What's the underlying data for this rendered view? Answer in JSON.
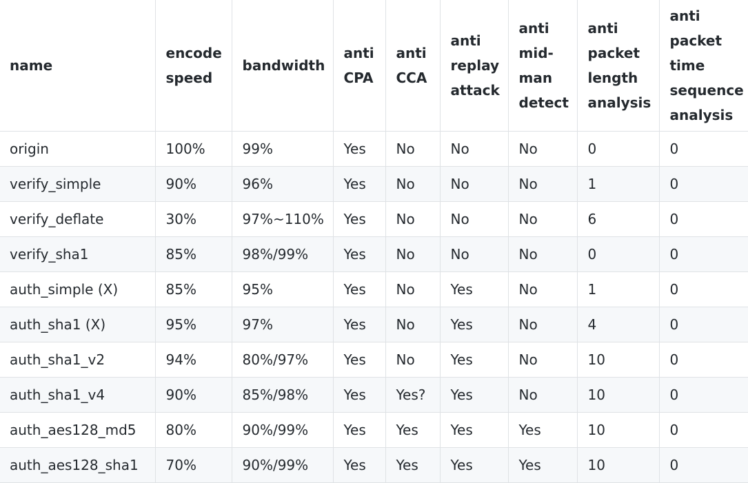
{
  "table": {
    "columns": [
      {
        "key": "name",
        "lines": [
          "name"
        ]
      },
      {
        "key": "encode_speed",
        "lines": [
          "encode",
          "speed"
        ]
      },
      {
        "key": "bandwidth",
        "lines": [
          "bandwidth"
        ]
      },
      {
        "key": "anti_cpa",
        "lines": [
          "anti",
          "CPA"
        ]
      },
      {
        "key": "anti_cca",
        "lines": [
          "anti",
          "CCA"
        ]
      },
      {
        "key": "anti_replay_attack",
        "lines": [
          "anti",
          "replay",
          "attack"
        ]
      },
      {
        "key": "anti_mid_man_detect",
        "lines": [
          "anti",
          "mid-",
          "man",
          "detect"
        ]
      },
      {
        "key": "anti_packet_length_analysis",
        "lines": [
          "anti",
          "packet",
          "length",
          "analysis"
        ]
      },
      {
        "key": "anti_packet_time_sequence_analysis",
        "lines": [
          "anti",
          "packet",
          "time",
          "sequence",
          "analysis"
        ]
      }
    ],
    "rows": [
      [
        "origin",
        "100%",
        "99%",
        "Yes",
        "No",
        "No",
        "No",
        "0",
        "0"
      ],
      [
        "verify_simple",
        "90%",
        "96%",
        "Yes",
        "No",
        "No",
        "No",
        "1",
        "0"
      ],
      [
        "verify_deflate",
        "30%",
        "97%~110%",
        "Yes",
        "No",
        "No",
        "No",
        "6",
        "0"
      ],
      [
        "verify_sha1",
        "85%",
        "98%/99%",
        "Yes",
        "No",
        "No",
        "No",
        "0",
        "0"
      ],
      [
        "auth_simple (X)",
        "85%",
        "95%",
        "Yes",
        "No",
        "Yes",
        "No",
        "1",
        "0"
      ],
      [
        "auth_sha1 (X)",
        "95%",
        "97%",
        "Yes",
        "No",
        "Yes",
        "No",
        "4",
        "0"
      ],
      [
        "auth_sha1_v2",
        "94%",
        "80%/97%",
        "Yes",
        "No",
        "Yes",
        "No",
        "10",
        "0"
      ],
      [
        "auth_sha1_v4",
        "90%",
        "85%/98%",
        "Yes",
        "Yes?",
        "Yes",
        "No",
        "10",
        "0"
      ],
      [
        "auth_aes128_md5",
        "80%",
        "90%/99%",
        "Yes",
        "Yes",
        "Yes",
        "Yes",
        "10",
        "0"
      ],
      [
        "auth_aes128_sha1",
        "70%",
        "90%/99%",
        "Yes",
        "Yes",
        "Yes",
        "Yes",
        "10",
        "0"
      ]
    ]
  }
}
